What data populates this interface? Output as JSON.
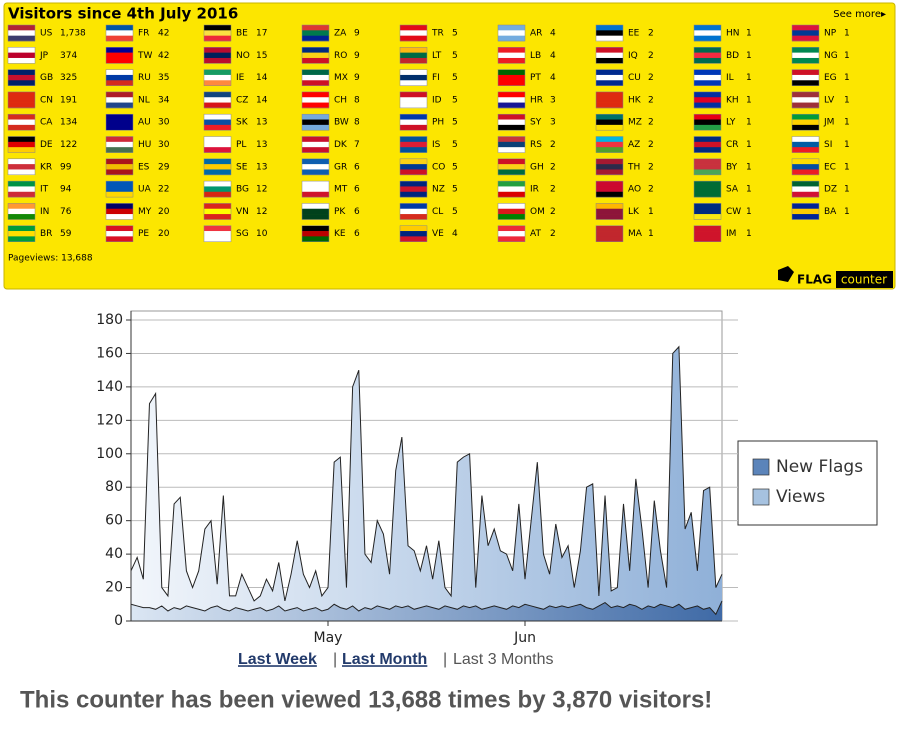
{
  "widget": {
    "title": "Visitors since 4th July 2016",
    "see_more": "See more▸",
    "pageviews": "Pageviews: 13,688",
    "logo_flag": "FLAG",
    "logo_counter": "counter",
    "background": "#fce600",
    "columns": [
      [
        {
          "code": "US",
          "count": "1,738",
          "colors": [
            "#b22234",
            "#ffffff",
            "#3c3b6e"
          ]
        },
        {
          "code": "JP",
          "count": 374,
          "colors": [
            "#ffffff",
            "#bc002d",
            "#ffffff"
          ]
        },
        {
          "code": "GB",
          "count": 325,
          "colors": [
            "#012169",
            "#c8102e",
            "#012169"
          ]
        },
        {
          "code": "CN",
          "count": 191,
          "colors": [
            "#de2910",
            "#de2910",
            "#de2910"
          ]
        },
        {
          "code": "CA",
          "count": 134,
          "colors": [
            "#d52b1e",
            "#ffffff",
            "#d52b1e"
          ]
        },
        {
          "code": "DE",
          "count": 122,
          "colors": [
            "#000000",
            "#dd0000",
            "#ffce00"
          ]
        },
        {
          "code": "KR",
          "count": 99,
          "colors": [
            "#ffffff",
            "#cd2e3a",
            "#ffffff"
          ]
        },
        {
          "code": "IT",
          "count": 94,
          "colors": [
            "#009246",
            "#ffffff",
            "#ce2b37"
          ]
        },
        {
          "code": "IN",
          "count": 76,
          "colors": [
            "#ff9933",
            "#ffffff",
            "#138808"
          ]
        },
        {
          "code": "BR",
          "count": 59,
          "colors": [
            "#009c3b",
            "#ffdf00",
            "#009c3b"
          ]
        }
      ],
      [
        {
          "code": "FR",
          "count": 42,
          "colors": [
            "#0055a4",
            "#ffffff",
            "#ef4135"
          ]
        },
        {
          "code": "TW",
          "count": 42,
          "colors": [
            "#000095",
            "#fe0000",
            "#fe0000"
          ]
        },
        {
          "code": "RU",
          "count": 35,
          "colors": [
            "#ffffff",
            "#0039a6",
            "#d52b1e"
          ]
        },
        {
          "code": "NL",
          "count": 34,
          "colors": [
            "#ae1c28",
            "#ffffff",
            "#21468b"
          ]
        },
        {
          "code": "AU",
          "count": 30,
          "colors": [
            "#00008b",
            "#00008b",
            "#00008b"
          ]
        },
        {
          "code": "HU",
          "count": 30,
          "colors": [
            "#ce2939",
            "#ffffff",
            "#477050"
          ]
        },
        {
          "code": "ES",
          "count": 29,
          "colors": [
            "#aa151b",
            "#f1bf00",
            "#aa151b"
          ]
        },
        {
          "code": "UA",
          "count": 22,
          "colors": [
            "#0057b7",
            "#0057b7",
            "#ffd700"
          ]
        },
        {
          "code": "MY",
          "count": 20,
          "colors": [
            "#010066",
            "#cc0001",
            "#ffffff"
          ]
        },
        {
          "code": "PE",
          "count": 20,
          "colors": [
            "#d91023",
            "#ffffff",
            "#d91023"
          ]
        }
      ],
      [
        {
          "code": "BE",
          "count": 17,
          "colors": [
            "#000000",
            "#fae042",
            "#ed2939"
          ]
        },
        {
          "code": "NO",
          "count": 15,
          "colors": [
            "#ba0c2f",
            "#00205b",
            "#ba0c2f"
          ]
        },
        {
          "code": "IE",
          "count": 14,
          "colors": [
            "#169b62",
            "#ffffff",
            "#ff883e"
          ]
        },
        {
          "code": "CZ",
          "count": 14,
          "colors": [
            "#11457e",
            "#ffffff",
            "#d7141a"
          ]
        },
        {
          "code": "SK",
          "count": 13,
          "colors": [
            "#ffffff",
            "#0b4ea2",
            "#ee1c25"
          ]
        },
        {
          "code": "PL",
          "count": 13,
          "colors": [
            "#ffffff",
            "#ffffff",
            "#dc143c"
          ]
        },
        {
          "code": "SE",
          "count": 13,
          "colors": [
            "#006aa7",
            "#fecc00",
            "#006aa7"
          ]
        },
        {
          "code": "BG",
          "count": 12,
          "colors": [
            "#ffffff",
            "#00966e",
            "#d62612"
          ]
        },
        {
          "code": "VN",
          "count": 12,
          "colors": [
            "#da251d",
            "#ffff00",
            "#da251d"
          ]
        },
        {
          "code": "SG",
          "count": 10,
          "colors": [
            "#ef3340",
            "#ffffff",
            "#ffffff"
          ]
        }
      ],
      [
        {
          "code": "ZA",
          "count": 9,
          "colors": [
            "#de3831",
            "#007a4d",
            "#002395"
          ]
        },
        {
          "code": "RO",
          "count": 9,
          "colors": [
            "#002b7f",
            "#fcd116",
            "#ce1126"
          ]
        },
        {
          "code": "MX",
          "count": 9,
          "colors": [
            "#006847",
            "#ffffff",
            "#ce1126"
          ]
        },
        {
          "code": "CH",
          "count": 8,
          "colors": [
            "#ff0000",
            "#ffffff",
            "#ff0000"
          ]
        },
        {
          "code": "BW",
          "count": 8,
          "colors": [
            "#75aadb",
            "#000000",
            "#75aadb"
          ]
        },
        {
          "code": "DK",
          "count": 7,
          "colors": [
            "#c8102e",
            "#ffffff",
            "#c8102e"
          ]
        },
        {
          "code": "GR",
          "count": 6,
          "colors": [
            "#0d5eaf",
            "#ffffff",
            "#0d5eaf"
          ]
        },
        {
          "code": "MT",
          "count": 6,
          "colors": [
            "#ffffff",
            "#ffffff",
            "#cf142b"
          ]
        },
        {
          "code": "PK",
          "count": 6,
          "colors": [
            "#ffffff",
            "#01411c",
            "#01411c"
          ]
        },
        {
          "code": "KE",
          "count": 6,
          "colors": [
            "#000000",
            "#bb0000",
            "#006600"
          ]
        }
      ],
      [
        {
          "code": "TR",
          "count": 5,
          "colors": [
            "#e30a17",
            "#ffffff",
            "#e30a17"
          ]
        },
        {
          "code": "LT",
          "count": 5,
          "colors": [
            "#fdb913",
            "#006a44",
            "#c1272d"
          ]
        },
        {
          "code": "FI",
          "count": 5,
          "colors": [
            "#ffffff",
            "#002f6c",
            "#ffffff"
          ]
        },
        {
          "code": "ID",
          "count": 5,
          "colors": [
            "#ce1126",
            "#ffffff",
            "#ffffff"
          ]
        },
        {
          "code": "PH",
          "count": 5,
          "colors": [
            "#0038a8",
            "#ffffff",
            "#ce1126"
          ]
        },
        {
          "code": "IS",
          "count": 5,
          "colors": [
            "#02529c",
            "#dc1e35",
            "#02529c"
          ]
        },
        {
          "code": "CO",
          "count": 5,
          "colors": [
            "#fcd116",
            "#003893",
            "#ce1126"
          ]
        },
        {
          "code": "NZ",
          "count": 5,
          "colors": [
            "#00247d",
            "#cc142b",
            "#00247d"
          ]
        },
        {
          "code": "CL",
          "count": 5,
          "colors": [
            "#0039a6",
            "#ffffff",
            "#d52b1e"
          ]
        },
        {
          "code": "VE",
          "count": 4,
          "colors": [
            "#ffcc00",
            "#00247d",
            "#cf142b"
          ]
        }
      ],
      [
        {
          "code": "AR",
          "count": 4,
          "colors": [
            "#74acdf",
            "#ffffff",
            "#74acdf"
          ]
        },
        {
          "code": "LB",
          "count": 4,
          "colors": [
            "#ed1c24",
            "#ffffff",
            "#ed1c24"
          ]
        },
        {
          "code": "PT",
          "count": 4,
          "colors": [
            "#006600",
            "#ff0000",
            "#ff0000"
          ]
        },
        {
          "code": "HR",
          "count": 3,
          "colors": [
            "#ff0000",
            "#ffffff",
            "#171796"
          ]
        },
        {
          "code": "SY",
          "count": 3,
          "colors": [
            "#ce1126",
            "#ffffff",
            "#000000"
          ]
        },
        {
          "code": "RS",
          "count": 2,
          "colors": [
            "#c6363c",
            "#0c4076",
            "#ffffff"
          ]
        },
        {
          "code": "GH",
          "count": 2,
          "colors": [
            "#ce1126",
            "#fcd116",
            "#006b3f"
          ]
        },
        {
          "code": "IR",
          "count": 2,
          "colors": [
            "#239f40",
            "#ffffff",
            "#da0000"
          ]
        },
        {
          "code": "OM",
          "count": 2,
          "colors": [
            "#ffffff",
            "#db161b",
            "#008000"
          ]
        },
        {
          "code": "AT",
          "count": 2,
          "colors": [
            "#ed2939",
            "#ffffff",
            "#ed2939"
          ]
        }
      ],
      [
        {
          "code": "EE",
          "count": 2,
          "colors": [
            "#0072ce",
            "#000000",
            "#ffffff"
          ]
        },
        {
          "code": "IQ",
          "count": 2,
          "colors": [
            "#ce1126",
            "#ffffff",
            "#000000"
          ]
        },
        {
          "code": "CU",
          "count": 2,
          "colors": [
            "#002a8f",
            "#ffffff",
            "#002a8f"
          ]
        },
        {
          "code": "HK",
          "count": 2,
          "colors": [
            "#de2910",
            "#de2910",
            "#de2910"
          ]
        },
        {
          "code": "MZ",
          "count": 2,
          "colors": [
            "#007168",
            "#000000",
            "#fce100"
          ]
        },
        {
          "code": "AZ",
          "count": 2,
          "colors": [
            "#00b5e2",
            "#ef3340",
            "#509e2f"
          ]
        },
        {
          "code": "TH",
          "count": 2,
          "colors": [
            "#a51931",
            "#2d2a4a",
            "#a51931"
          ]
        },
        {
          "code": "AO",
          "count": 2,
          "colors": [
            "#cc092f",
            "#cc092f",
            "#000000"
          ]
        },
        {
          "code": "LK",
          "count": 1,
          "colors": [
            "#ffb700",
            "#8d153a",
            "#8d153a"
          ]
        },
        {
          "code": "MA",
          "count": 1,
          "colors": [
            "#c1272d",
            "#c1272d",
            "#c1272d"
          ]
        }
      ],
      [
        {
          "code": "HN",
          "count": 1,
          "colors": [
            "#0073cf",
            "#ffffff",
            "#0073cf"
          ]
        },
        {
          "code": "BD",
          "count": 1,
          "colors": [
            "#006a4e",
            "#f42a41",
            "#006a4e"
          ]
        },
        {
          "code": "IL",
          "count": 1,
          "colors": [
            "#0038b8",
            "#ffffff",
            "#0038b8"
          ]
        },
        {
          "code": "KH",
          "count": 1,
          "colors": [
            "#032ea1",
            "#e00025",
            "#032ea1"
          ]
        },
        {
          "code": "LY",
          "count": 1,
          "colors": [
            "#e70013",
            "#000000",
            "#239e46"
          ]
        },
        {
          "code": "CR",
          "count": 1,
          "colors": [
            "#002b7f",
            "#ce1126",
            "#002b7f"
          ]
        },
        {
          "code": "BY",
          "count": 1,
          "colors": [
            "#c8313e",
            "#c8313e",
            "#4aa657"
          ]
        },
        {
          "code": "SA",
          "count": 1,
          "colors": [
            "#006c35",
            "#006c35",
            "#006c35"
          ]
        },
        {
          "code": "CW",
          "count": 1,
          "colors": [
            "#002b7f",
            "#002b7f",
            "#f9e814"
          ]
        },
        {
          "code": "IM",
          "count": 1,
          "colors": [
            "#cf142b",
            "#cf142b",
            "#cf142b"
          ]
        }
      ],
      [
        {
          "code": "NP",
          "count": 1,
          "colors": [
            "#dc143c",
            "#003893",
            "#dc143c"
          ]
        },
        {
          "code": "NG",
          "count": 1,
          "colors": [
            "#008751",
            "#ffffff",
            "#008751"
          ]
        },
        {
          "code": "EG",
          "count": 1,
          "colors": [
            "#ce1126",
            "#ffffff",
            "#000000"
          ]
        },
        {
          "code": "LV",
          "count": 1,
          "colors": [
            "#9e3039",
            "#ffffff",
            "#9e3039"
          ]
        },
        {
          "code": "JM",
          "count": 1,
          "colors": [
            "#009b3a",
            "#fed100",
            "#000000"
          ]
        },
        {
          "code": "SI",
          "count": 1,
          "colors": [
            "#ffffff",
            "#005da4",
            "#ed1c24"
          ]
        },
        {
          "code": "EC",
          "count": 1,
          "colors": [
            "#ffdd00",
            "#034ea2",
            "#ed1c24"
          ]
        },
        {
          "code": "DZ",
          "count": 1,
          "colors": [
            "#006233",
            "#ffffff",
            "#d21034"
          ]
        },
        {
          "code": "BA",
          "count": 1,
          "colors": [
            "#002395",
            "#fecb00",
            "#002395"
          ]
        }
      ]
    ]
  },
  "chart_data": {
    "type": "area",
    "categories": [
      null,
      null,
      null,
      null,
      null,
      null,
      null,
      null,
      null,
      null,
      null,
      null,
      null,
      null,
      null,
      null,
      null,
      null,
      null,
      null,
      null,
      null,
      null,
      null,
      null,
      null,
      null,
      null,
      null,
      null,
      null,
      null,
      "May",
      null,
      null,
      null,
      null,
      null,
      null,
      null,
      null,
      null,
      null,
      null,
      null,
      null,
      null,
      null,
      null,
      null,
      null,
      null,
      null,
      null,
      null,
      null,
      null,
      null,
      null,
      null,
      null,
      null,
      null,
      null,
      "Jun",
      null,
      null,
      null,
      null,
      null,
      null,
      null,
      null,
      null,
      null,
      null,
      null,
      null,
      null,
      null,
      null,
      null,
      null,
      null,
      null,
      null,
      null,
      null,
      null,
      null,
      null,
      null,
      null,
      null,
      null,
      null,
      null
    ],
    "series": [
      {
        "name": "Views",
        "color": "#a6c2e0",
        "values": [
          30,
          38,
          25,
          130,
          136,
          20,
          15,
          70,
          74,
          30,
          20,
          30,
          55,
          60,
          22,
          75,
          15,
          15,
          28,
          20,
          12,
          15,
          25,
          18,
          35,
          12,
          28,
          48,
          28,
          20,
          30,
          15,
          20,
          95,
          98,
          20,
          140,
          150,
          40,
          35,
          60,
          52,
          28,
          90,
          110,
          45,
          42,
          30,
          45,
          25,
          48,
          20,
          15,
          95,
          98,
          100,
          20,
          75,
          45,
          55,
          42,
          40,
          30,
          70,
          25,
          60,
          95,
          40,
          28,
          58,
          38,
          45,
          20,
          42,
          80,
          82,
          15,
          75,
          18,
          20,
          70,
          30,
          85,
          55,
          20,
          72,
          42,
          20,
          160,
          164,
          55,
          65,
          30,
          78,
          80,
          20,
          28
        ]
      },
      {
        "name": "New Flags",
        "color": "#5b84ba",
        "values": [
          10,
          9,
          8,
          8,
          7,
          9,
          6,
          8,
          7,
          9,
          8,
          7,
          6,
          8,
          9,
          7,
          6,
          8,
          7,
          6,
          7,
          8,
          6,
          7,
          9,
          6,
          7,
          8,
          6,
          7,
          8,
          6,
          7,
          10,
          8,
          7,
          9,
          6,
          8,
          7,
          9,
          8,
          7,
          9,
          8,
          9,
          7,
          8,
          9,
          8,
          7,
          9,
          8,
          7,
          9,
          8,
          9,
          7,
          8,
          9,
          8,
          7,
          9,
          8,
          10,
          9,
          8,
          7,
          9,
          8,
          9,
          8,
          9,
          10,
          8,
          7,
          9,
          11,
          8,
          9,
          8,
          10,
          9,
          7,
          9,
          8,
          10,
          9,
          8,
          10,
          7,
          8,
          9,
          7,
          8,
          4,
          12
        ]
      }
    ],
    "legend_order": [
      1,
      0
    ],
    "ylim": [
      0,
      180
    ],
    "yticks": [
      0,
      20,
      40,
      60,
      80,
      100,
      120,
      140,
      160,
      180
    ],
    "grid": true
  },
  "range_links": {
    "items": [
      "Last Week",
      "Last Month",
      "Last 3 Months"
    ],
    "separator": "|"
  },
  "footer": "This counter has been viewed 13,688 times by 3,870 visitors!"
}
